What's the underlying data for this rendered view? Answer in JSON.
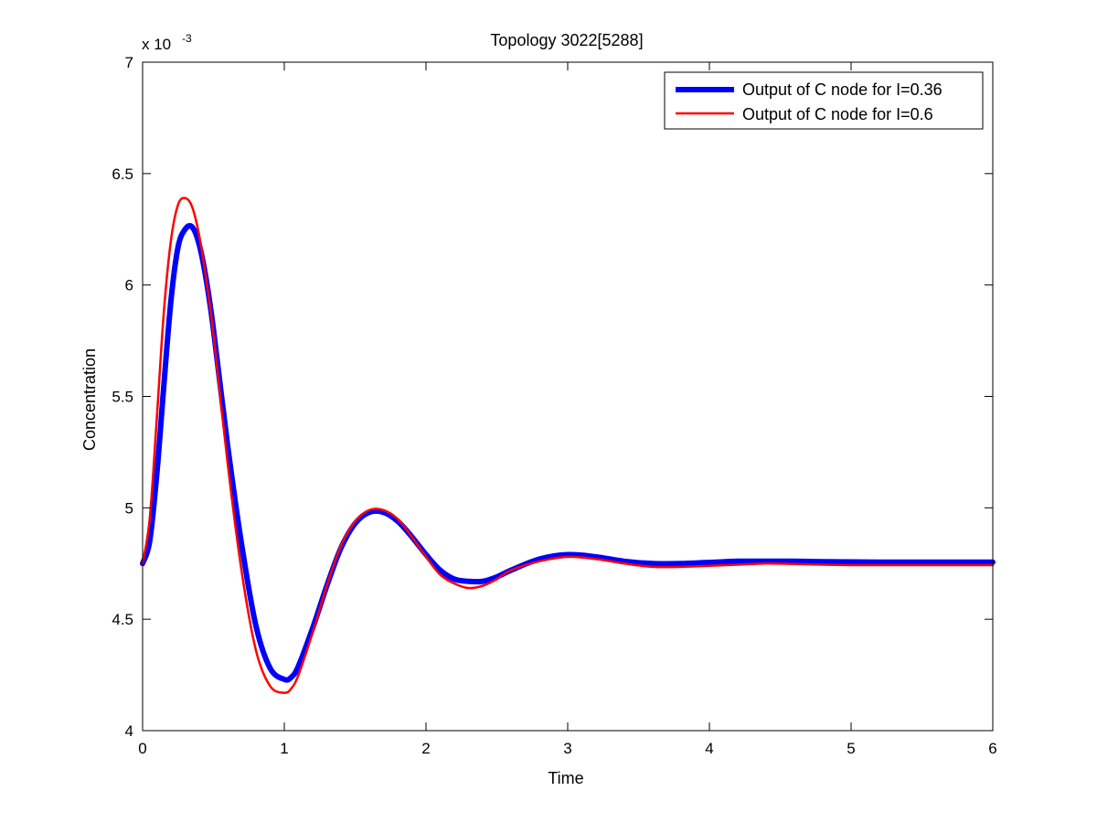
{
  "chart_data": {
    "type": "line",
    "title": "Topology 3022[5288]",
    "xlabel": "Time",
    "ylabel": "Concentration",
    "y_multiplier_label": "x 10",
    "y_multiplier_exponent": "-3",
    "xlim": [
      0,
      6
    ],
    "ylim": [
      4,
      7
    ],
    "x_ticks": [
      0,
      1,
      2,
      3,
      4,
      5,
      6
    ],
    "x_tick_labels": [
      "0",
      "1",
      "2",
      "3",
      "4",
      "5",
      "6"
    ],
    "y_ticks": [
      4,
      4.5,
      5,
      5.5,
      6,
      6.5,
      7
    ],
    "y_tick_labels": [
      "4",
      "4.5",
      "5",
      "5.5",
      "6",
      "6.5",
      "7"
    ],
    "grid": false,
    "legend_position": "top-right",
    "series": [
      {
        "name": "Output of C node for I=0.36",
        "color": "#0000ff",
        "line_width": "thick",
        "x": [
          0,
          0.05,
          0.1,
          0.15,
          0.2,
          0.25,
          0.3,
          0.35,
          0.4,
          0.45,
          0.5,
          0.6,
          0.7,
          0.8,
          0.9,
          1.0,
          1.05,
          1.1,
          1.2,
          1.3,
          1.4,
          1.5,
          1.6,
          1.7,
          1.8,
          1.9,
          2.0,
          2.1,
          2.2,
          2.3,
          2.4,
          2.5,
          2.6,
          2.8,
          3.0,
          3.2,
          3.4,
          3.6,
          3.8,
          4.0,
          4.2,
          4.4,
          4.6,
          4.8,
          5.0,
          5.2,
          5.4,
          5.6,
          5.8,
          6.0
        ],
        "y": [
          4.75,
          4.85,
          5.15,
          5.55,
          5.93,
          6.17,
          6.25,
          6.26,
          6.18,
          6.02,
          5.8,
          5.28,
          4.83,
          4.47,
          4.28,
          4.23,
          4.24,
          4.29,
          4.46,
          4.65,
          4.82,
          4.93,
          4.98,
          4.98,
          4.94,
          4.87,
          4.79,
          4.72,
          4.68,
          4.67,
          4.67,
          4.69,
          4.72,
          4.77,
          4.79,
          4.78,
          4.76,
          4.75,
          4.75,
          4.755,
          4.76,
          4.76,
          4.76,
          4.758,
          4.757,
          4.756,
          4.756,
          4.756,
          4.756,
          4.756
        ]
      },
      {
        "name": "Output of C node for I=0.6",
        "color": "#ff0000",
        "line_width": "thin",
        "x": [
          0,
          0.05,
          0.1,
          0.15,
          0.2,
          0.25,
          0.3,
          0.35,
          0.4,
          0.45,
          0.5,
          0.6,
          0.7,
          0.8,
          0.9,
          1.0,
          1.05,
          1.1,
          1.2,
          1.3,
          1.4,
          1.5,
          1.6,
          1.7,
          1.8,
          1.9,
          2.0,
          2.1,
          2.2,
          2.3,
          2.4,
          2.5,
          2.6,
          2.8,
          3.0,
          3.2,
          3.4,
          3.6,
          3.8,
          4.0,
          4.2,
          4.4,
          4.6,
          4.8,
          5.0,
          5.2,
          5.4,
          5.6,
          5.8,
          6.0
        ],
        "y": [
          4.75,
          4.95,
          5.4,
          5.88,
          6.2,
          6.36,
          6.39,
          6.35,
          6.22,
          6.02,
          5.78,
          5.2,
          4.71,
          4.36,
          4.2,
          4.17,
          4.19,
          4.25,
          4.44,
          4.65,
          4.83,
          4.94,
          4.99,
          4.99,
          4.95,
          4.87,
          4.78,
          4.7,
          4.66,
          4.64,
          4.65,
          4.68,
          4.72,
          4.76,
          4.78,
          4.77,
          4.75,
          4.735,
          4.735,
          4.74,
          4.745,
          4.75,
          4.748,
          4.745,
          4.743,
          4.743,
          4.743,
          4.743,
          4.743,
          4.743
        ]
      }
    ]
  }
}
